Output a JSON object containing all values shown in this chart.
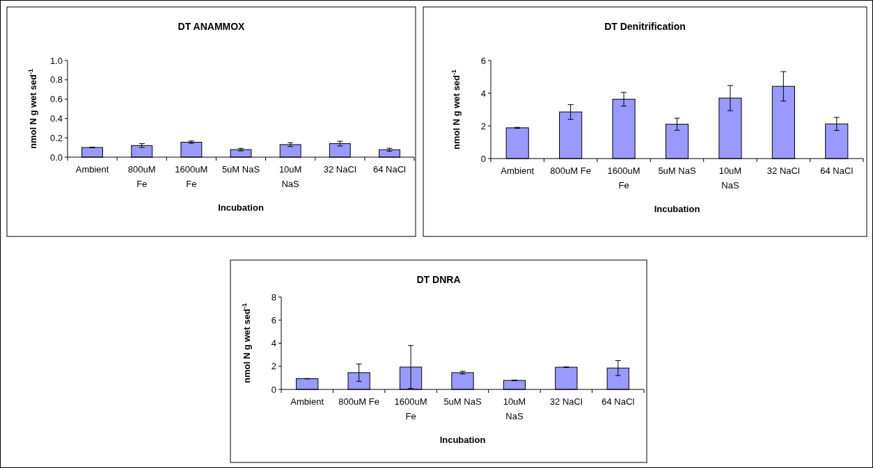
{
  "chart_data": [
    {
      "type": "bar",
      "title": "DT ANAMMOX",
      "xlabel": "Incubation",
      "ylabel": "nmol N g wet sed$^{-1}$",
      "categories": [
        "Ambient",
        "800uM Fe",
        "1600uM Fe",
        "5uM NaS",
        "10uM NaS",
        "32 NaCl",
        "64 NaCl"
      ],
      "values": [
        0.1,
        0.12,
        0.155,
        0.078,
        0.13,
        0.14,
        0.077
      ],
      "errors": [
        0.003,
        0.02,
        0.012,
        0.013,
        0.02,
        0.025,
        0.015
      ],
      "color": "#9999ff",
      "ylim": [
        0,
        1
      ],
      "yticks": [
        {
          "value": 0,
          "label": "0.0"
        },
        {
          "value": 0.2,
          "label": "0.2"
        },
        {
          "value": 0.4,
          "label": "0.4"
        },
        {
          "value": 0.6,
          "label": "0.6"
        },
        {
          "value": 0.8,
          "label": "0.8"
        },
        {
          "value": 1,
          "label": "1.0"
        }
      ],
      "grid": false
    },
    {
      "type": "bar",
      "title": "DT Denitrification",
      "xlabel": "Incubation",
      "ylabel": "nmol N g wet sed$^{-1}$",
      "categories": [
        "Ambient",
        "800uM Fe",
        "1600uM Fe",
        "5uM NaS",
        "10uM NaS",
        "32 NaCl",
        "64 NaCl"
      ],
      "values": [
        1.88,
        2.85,
        3.63,
        2.1,
        3.7,
        4.42,
        2.12
      ],
      "errors": [
        0.03,
        0.45,
        0.42,
        0.37,
        0.77,
        0.9,
        0.4
      ],
      "color": "#9999ff",
      "ylim": [
        0,
        6
      ],
      "yticks": [
        0,
        2,
        4,
        6
      ],
      "grid": false
    },
    {
      "type": "bar",
      "title": "DT DNRA",
      "xlabel": "Incubation",
      "ylabel": "nmol N g wet sed$^{-1}$",
      "categories": [
        "Ambient",
        "800uM Fe",
        "1600uM Fe",
        "5uM NaS",
        "10uM NaS",
        "32 NaCl",
        "64 NaCl"
      ],
      "values": [
        0.93,
        1.45,
        1.93,
        1.45,
        0.78,
        1.92,
        1.85
      ],
      "errors": [
        0.02,
        0.75,
        [
          0.08,
          3.8
        ],
        0.12,
        0.02,
        0.02,
        0.65
      ],
      "color": "#9999ff",
      "ylim": [
        0,
        8
      ],
      "yticks": [
        0,
        2,
        4,
        6,
        8
      ],
      "grid": false
    }
  ]
}
